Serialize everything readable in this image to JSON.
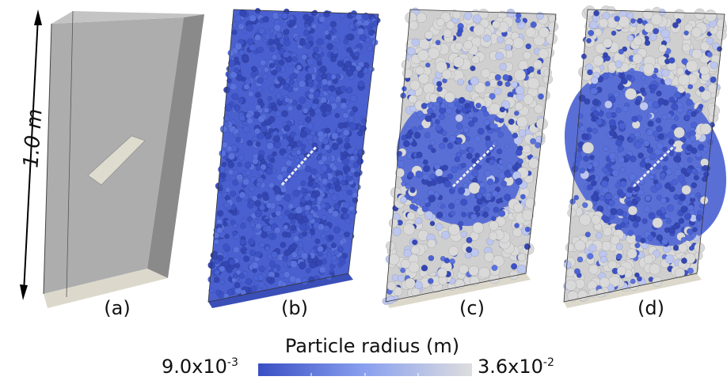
{
  "dimension_label": "1.0 m",
  "panels": [
    {
      "label": "(a)",
      "kind": "geometry"
    },
    {
      "label": "(b)",
      "kind": "particles-fine"
    },
    {
      "label": "(c)",
      "kind": "particles-mixed-coarse"
    },
    {
      "label": "(d)",
      "kind": "particles-mixed-fine"
    }
  ],
  "colorbar": {
    "title": "Particle radius (m)",
    "min_mantissa": "9.0x10",
    "min_exp": "-3",
    "max_mantissa": "3.6x10",
    "max_exp": "-2",
    "color_min": "#3a4fc4",
    "color_mid": "#8aa0ef",
    "color_max": "#dedede"
  },
  "colors": {
    "box_face": "#a9a9a9",
    "box_side": "#8a8a8a",
    "box_bottom": "#dcd9cc",
    "crack": "#dedbcf"
  }
}
